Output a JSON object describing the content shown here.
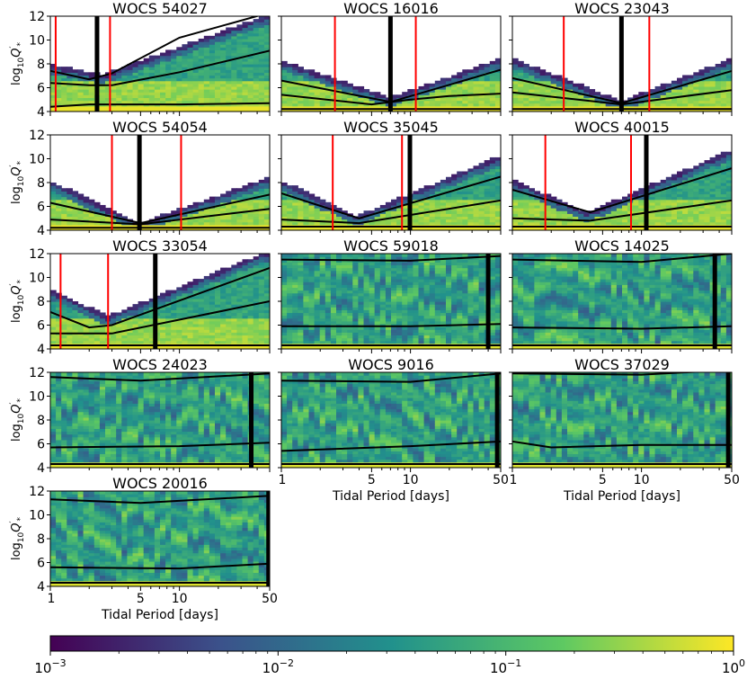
{
  "figure": {
    "ylabel_prefix": "log",
    "ylabel_sub": "10",
    "ylabel_symbol": "Q",
    "ylabel_sub2": "*",
    "ylabel_prime": "′",
    "xlabel": "Tidal Period [days]",
    "colorbar": {
      "colors": [
        "#440154",
        "#3b528b",
        "#21918c",
        "#5ec962",
        "#fde725"
      ],
      "ticks": [
        {
          "base": "10",
          "exp": "−3"
        },
        {
          "base": "10",
          "exp": "−2"
        },
        {
          "base": "10",
          "exp": "−1"
        },
        {
          "base": "10",
          "exp": "0"
        }
      ]
    },
    "marker_colors": {
      "red": "#ff0000",
      "black": "#000000"
    }
  },
  "chart_data": [
    {
      "type": "heatmap",
      "title": "WOCS 54027",
      "xscale": "log",
      "xlim": [
        1,
        50
      ],
      "ylim": [
        4,
        12
      ],
      "yticks": [
        4,
        6,
        8,
        10,
        12
      ],
      "xticks": [
        1,
        5,
        10,
        50
      ],
      "xtick_labels": [],
      "envelope": {
        "left_top": 8.0,
        "vertex_x": 2.5,
        "vertex_y": 7.1,
        "right_top": 12.2
      },
      "black_line_x": 2.3,
      "red_lines_x": [
        1.1,
        2.9
      ],
      "median_curves": [
        [
          [
            1,
            4.4
          ],
          [
            2,
            4.6
          ],
          [
            3,
            4.6
          ],
          [
            10,
            4.6
          ],
          [
            50,
            4.7
          ]
        ],
        [
          [
            1,
            6.4
          ],
          [
            2,
            6.2
          ],
          [
            3,
            6.2
          ],
          [
            10,
            7.3
          ],
          [
            50,
            9.1
          ]
        ],
        [
          [
            1,
            7.4
          ],
          [
            2,
            6.7
          ],
          [
            3,
            7.2
          ],
          [
            10,
            10.2
          ],
          [
            50,
            12.3
          ]
        ]
      ]
    },
    {
      "type": "heatmap",
      "title": "WOCS 16016",
      "xscale": "log",
      "xlim": [
        1,
        50
      ],
      "ylim": [
        4,
        12
      ],
      "yticks": [
        4,
        6,
        8,
        10,
        12
      ],
      "xticks": [
        1,
        5,
        10,
        50
      ],
      "xtick_labels": [],
      "envelope": {
        "left_top": 8.3,
        "vertex_x": 7.0,
        "vertex_y": 5.2,
        "right_top": 8.5
      },
      "black_line_x": 7.0,
      "red_lines_x": [
        2.6,
        11.0
      ],
      "median_curves": [
        [
          [
            1,
            4.2
          ],
          [
            50,
            4.2
          ]
        ],
        [
          [
            1,
            5.4
          ],
          [
            5,
            4.6
          ],
          [
            10,
            5.0
          ],
          [
            20,
            5.3
          ],
          [
            50,
            5.5
          ]
        ],
        [
          [
            1,
            6.6
          ],
          [
            7,
            4.8
          ],
          [
            50,
            7.5
          ]
        ]
      ]
    },
    {
      "type": "heatmap",
      "title": "WOCS 23043",
      "xscale": "log",
      "xlim": [
        1,
        50
      ],
      "ylim": [
        4,
        12
      ],
      "yticks": [
        4,
        6,
        8,
        10,
        12
      ],
      "xticks": [
        1,
        5,
        10,
        50
      ],
      "xtick_labels": [],
      "envelope": {
        "left_top": 8.5,
        "vertex_x": 7.0,
        "vertex_y": 4.9,
        "right_top": 8.5
      },
      "black_line_x": 7.0,
      "red_lines_x": [
        2.5,
        11.5
      ],
      "median_curves": [
        [
          [
            1,
            4.2
          ],
          [
            50,
            4.2
          ]
        ],
        [
          [
            1,
            5.6
          ],
          [
            7,
            4.6
          ],
          [
            50,
            5.8
          ]
        ],
        [
          [
            1,
            6.8
          ],
          [
            7,
            4.7
          ],
          [
            50,
            7.4
          ]
        ]
      ]
    },
    {
      "type": "heatmap",
      "title": "WOCS 54054",
      "xscale": "log",
      "xlim": [
        1,
        50
      ],
      "ylim": [
        4,
        12
      ],
      "yticks": [
        4,
        6,
        8,
        10,
        12
      ],
      "xticks": [
        1,
        5,
        10,
        50
      ],
      "xtick_labels": [],
      "envelope": {
        "left_top": 8.2,
        "vertex_x": 4.9,
        "vertex_y": 4.6,
        "right_top": 8.5
      },
      "black_line_x": 4.9,
      "red_lines_x": [
        3.0,
        10.3
      ],
      "median_curves": [
        [
          [
            1,
            4.2
          ],
          [
            50,
            4.2
          ]
        ],
        [
          [
            1,
            4.9
          ],
          [
            5,
            4.5
          ],
          [
            50,
            5.8
          ]
        ],
        [
          [
            1,
            6.3
          ],
          [
            5,
            4.6
          ],
          [
            50,
            7.0
          ]
        ]
      ]
    },
    {
      "type": "heatmap",
      "title": "WOCS 35045",
      "xscale": "log",
      "xlim": [
        1,
        50
      ],
      "ylim": [
        4,
        12
      ],
      "yticks": [
        4,
        6,
        8,
        10,
        12
      ],
      "xticks": [
        1,
        5,
        10,
        50
      ],
      "xtick_labels": [],
      "envelope": {
        "left_top": 8.2,
        "vertex_x": 3.8,
        "vertex_y": 5.2,
        "right_top": 10.3
      },
      "black_line_x": 9.9,
      "red_lines_x": [
        2.5,
        8.6
      ],
      "median_curves": [
        [
          [
            1,
            4.3
          ],
          [
            50,
            4.3
          ]
        ],
        [
          [
            1,
            4.9
          ],
          [
            4,
            4.6
          ],
          [
            50,
            6.5
          ]
        ],
        [
          [
            1,
            7.1
          ],
          [
            4,
            5.0
          ],
          [
            50,
            8.5
          ]
        ]
      ]
    },
    {
      "type": "heatmap",
      "title": "WOCS 40015",
      "xscale": "log",
      "xlim": [
        1,
        50
      ],
      "ylim": [
        4,
        12
      ],
      "yticks": [
        4,
        6,
        8,
        10,
        12
      ],
      "xticks": [
        1,
        5,
        10,
        50
      ],
      "xtick_labels": [],
      "envelope": {
        "left_top": 8.3,
        "vertex_x": 3.8,
        "vertex_y": 5.5,
        "right_top": 10.8
      },
      "black_line_x": 10.9,
      "red_lines_x": [
        1.8,
        8.3
      ],
      "median_curves": [
        [
          [
            1,
            4.3
          ],
          [
            50,
            4.3
          ]
        ],
        [
          [
            1,
            5.0
          ],
          [
            4,
            4.8
          ],
          [
            50,
            6.5
          ]
        ],
        [
          [
            1,
            7.4
          ],
          [
            4,
            5.5
          ],
          [
            50,
            9.2
          ]
        ]
      ]
    },
    {
      "type": "heatmap",
      "title": "WOCS 33054",
      "xscale": "log",
      "xlim": [
        1,
        50
      ],
      "ylim": [
        4,
        12
      ],
      "yticks": [
        4,
        6,
        8,
        10,
        12
      ],
      "xticks": [
        1,
        5,
        10,
        50
      ],
      "xtick_labels": [],
      "envelope": {
        "left_top": 9.0,
        "vertex_x": 2.8,
        "vertex_y": 6.8,
        "right_top": 12.3
      },
      "black_line_x": 6.5,
      "red_lines_x": [
        1.2,
        2.8
      ],
      "median_curves": [
        [
          [
            1,
            4.3
          ],
          [
            50,
            4.3
          ]
        ],
        [
          [
            1,
            5.3
          ],
          [
            3,
            5.3
          ],
          [
            50,
            8.0
          ]
        ],
        [
          [
            1,
            7.1
          ],
          [
            2,
            5.8
          ],
          [
            3,
            6.0
          ],
          [
            50,
            10.8
          ]
        ]
      ]
    },
    {
      "type": "heatmap",
      "title": "WOCS 59018",
      "xscale": "log",
      "xlim": [
        1,
        50
      ],
      "ylim": [
        4,
        12
      ],
      "yticks": [
        4,
        6,
        8,
        10,
        12
      ],
      "xticks": [
        1,
        5,
        10,
        50
      ],
      "xtick_labels": [],
      "envelope": null,
      "black_line_x": 40,
      "red_lines_x": [],
      "median_curves": [
        [
          [
            1,
            4.3
          ],
          [
            50,
            4.3
          ]
        ],
        [
          [
            1,
            5.9
          ],
          [
            10,
            5.9
          ],
          [
            50,
            6.1
          ]
        ],
        [
          [
            1,
            11.5
          ],
          [
            10,
            11.4
          ],
          [
            50,
            11.8
          ]
        ]
      ]
    },
    {
      "type": "heatmap",
      "title": "WOCS 14025",
      "xscale": "log",
      "xlim": [
        1,
        50
      ],
      "ylim": [
        4,
        12
      ],
      "yticks": [
        4,
        6,
        8,
        10,
        12
      ],
      "xticks": [
        1,
        5,
        10,
        50
      ],
      "xtick_labels": [],
      "envelope": null,
      "black_line_x": 37,
      "red_lines_x": [],
      "median_curves": [
        [
          [
            1,
            4.3
          ],
          [
            50,
            4.3
          ]
        ],
        [
          [
            1,
            5.8
          ],
          [
            10,
            5.7
          ],
          [
            50,
            5.9
          ]
        ],
        [
          [
            1,
            11.5
          ],
          [
            10,
            11.3
          ],
          [
            50,
            12.0
          ]
        ]
      ]
    },
    {
      "type": "heatmap",
      "title": "WOCS 24023",
      "xscale": "log",
      "xlim": [
        1,
        50
      ],
      "ylim": [
        4,
        12
      ],
      "yticks": [
        4,
        6,
        8,
        10,
        12
      ],
      "xticks": [
        1,
        5,
        10,
        50
      ],
      "xtick_labels": [],
      "envelope": null,
      "black_line_x": 36,
      "red_lines_x": [],
      "median_curves": [
        [
          [
            1,
            4.3
          ],
          [
            50,
            4.3
          ]
        ],
        [
          [
            1,
            5.7
          ],
          [
            10,
            5.8
          ],
          [
            50,
            6.1
          ]
        ],
        [
          [
            1,
            11.6
          ],
          [
            5,
            11.3
          ],
          [
            50,
            11.9
          ]
        ]
      ]
    },
    {
      "type": "heatmap",
      "title": "WOCS 9016",
      "xscale": "log",
      "xlim": [
        1,
        50
      ],
      "ylim": [
        4,
        12
      ],
      "yticks": [
        4,
        6,
        8,
        10,
        12
      ],
      "xticks": [
        1,
        5,
        10,
        50
      ],
      "xtick_labels": [
        "1",
        "5",
        "10",
        "50"
      ],
      "envelope": null,
      "black_line_x": 47,
      "red_lines_x": [],
      "median_curves": [
        [
          [
            1,
            4.3
          ],
          [
            50,
            4.3
          ]
        ],
        [
          [
            1,
            5.4
          ],
          [
            10,
            5.8
          ],
          [
            50,
            6.2
          ]
        ],
        [
          [
            1,
            11.3
          ],
          [
            10,
            11.2
          ],
          [
            50,
            11.9
          ]
        ]
      ]
    },
    {
      "type": "heatmap",
      "title": "WOCS 37029",
      "xscale": "log",
      "xlim": [
        1,
        50
      ],
      "ylim": [
        4,
        12
      ],
      "yticks": [
        4,
        6,
        8,
        10,
        12
      ],
      "xticks": [
        1,
        5,
        10,
        50
      ],
      "xtick_labels": [
        "1",
        "5",
        "10",
        "50"
      ],
      "envelope": null,
      "black_line_x": 47,
      "red_lines_x": [],
      "median_curves": [
        [
          [
            1,
            4.3
          ],
          [
            50,
            4.3
          ]
        ],
        [
          [
            1,
            6.2
          ],
          [
            2,
            5.7
          ],
          [
            10,
            5.9
          ],
          [
            50,
            5.9
          ]
        ],
        [
          [
            1,
            11.9
          ],
          [
            10,
            11.8
          ],
          [
            50,
            12.2
          ]
        ]
      ]
    },
    {
      "type": "heatmap",
      "title": "WOCS 20016",
      "xscale": "log",
      "xlim": [
        1,
        50
      ],
      "ylim": [
        4,
        12
      ],
      "yticks": [
        4,
        6,
        8,
        10,
        12
      ],
      "xticks": [
        1,
        5,
        10,
        50
      ],
      "xtick_labels": [
        "1",
        "5",
        "10",
        "50"
      ],
      "envelope": null,
      "black_line_x": 49,
      "red_lines_x": [],
      "median_curves": [
        [
          [
            1,
            4.3
          ],
          [
            50,
            4.3
          ]
        ],
        [
          [
            1,
            5.6
          ],
          [
            10,
            5.5
          ],
          [
            50,
            5.9
          ]
        ],
        [
          [
            1,
            11.3
          ],
          [
            5,
            11.0
          ],
          [
            50,
            11.6
          ]
        ]
      ]
    }
  ]
}
